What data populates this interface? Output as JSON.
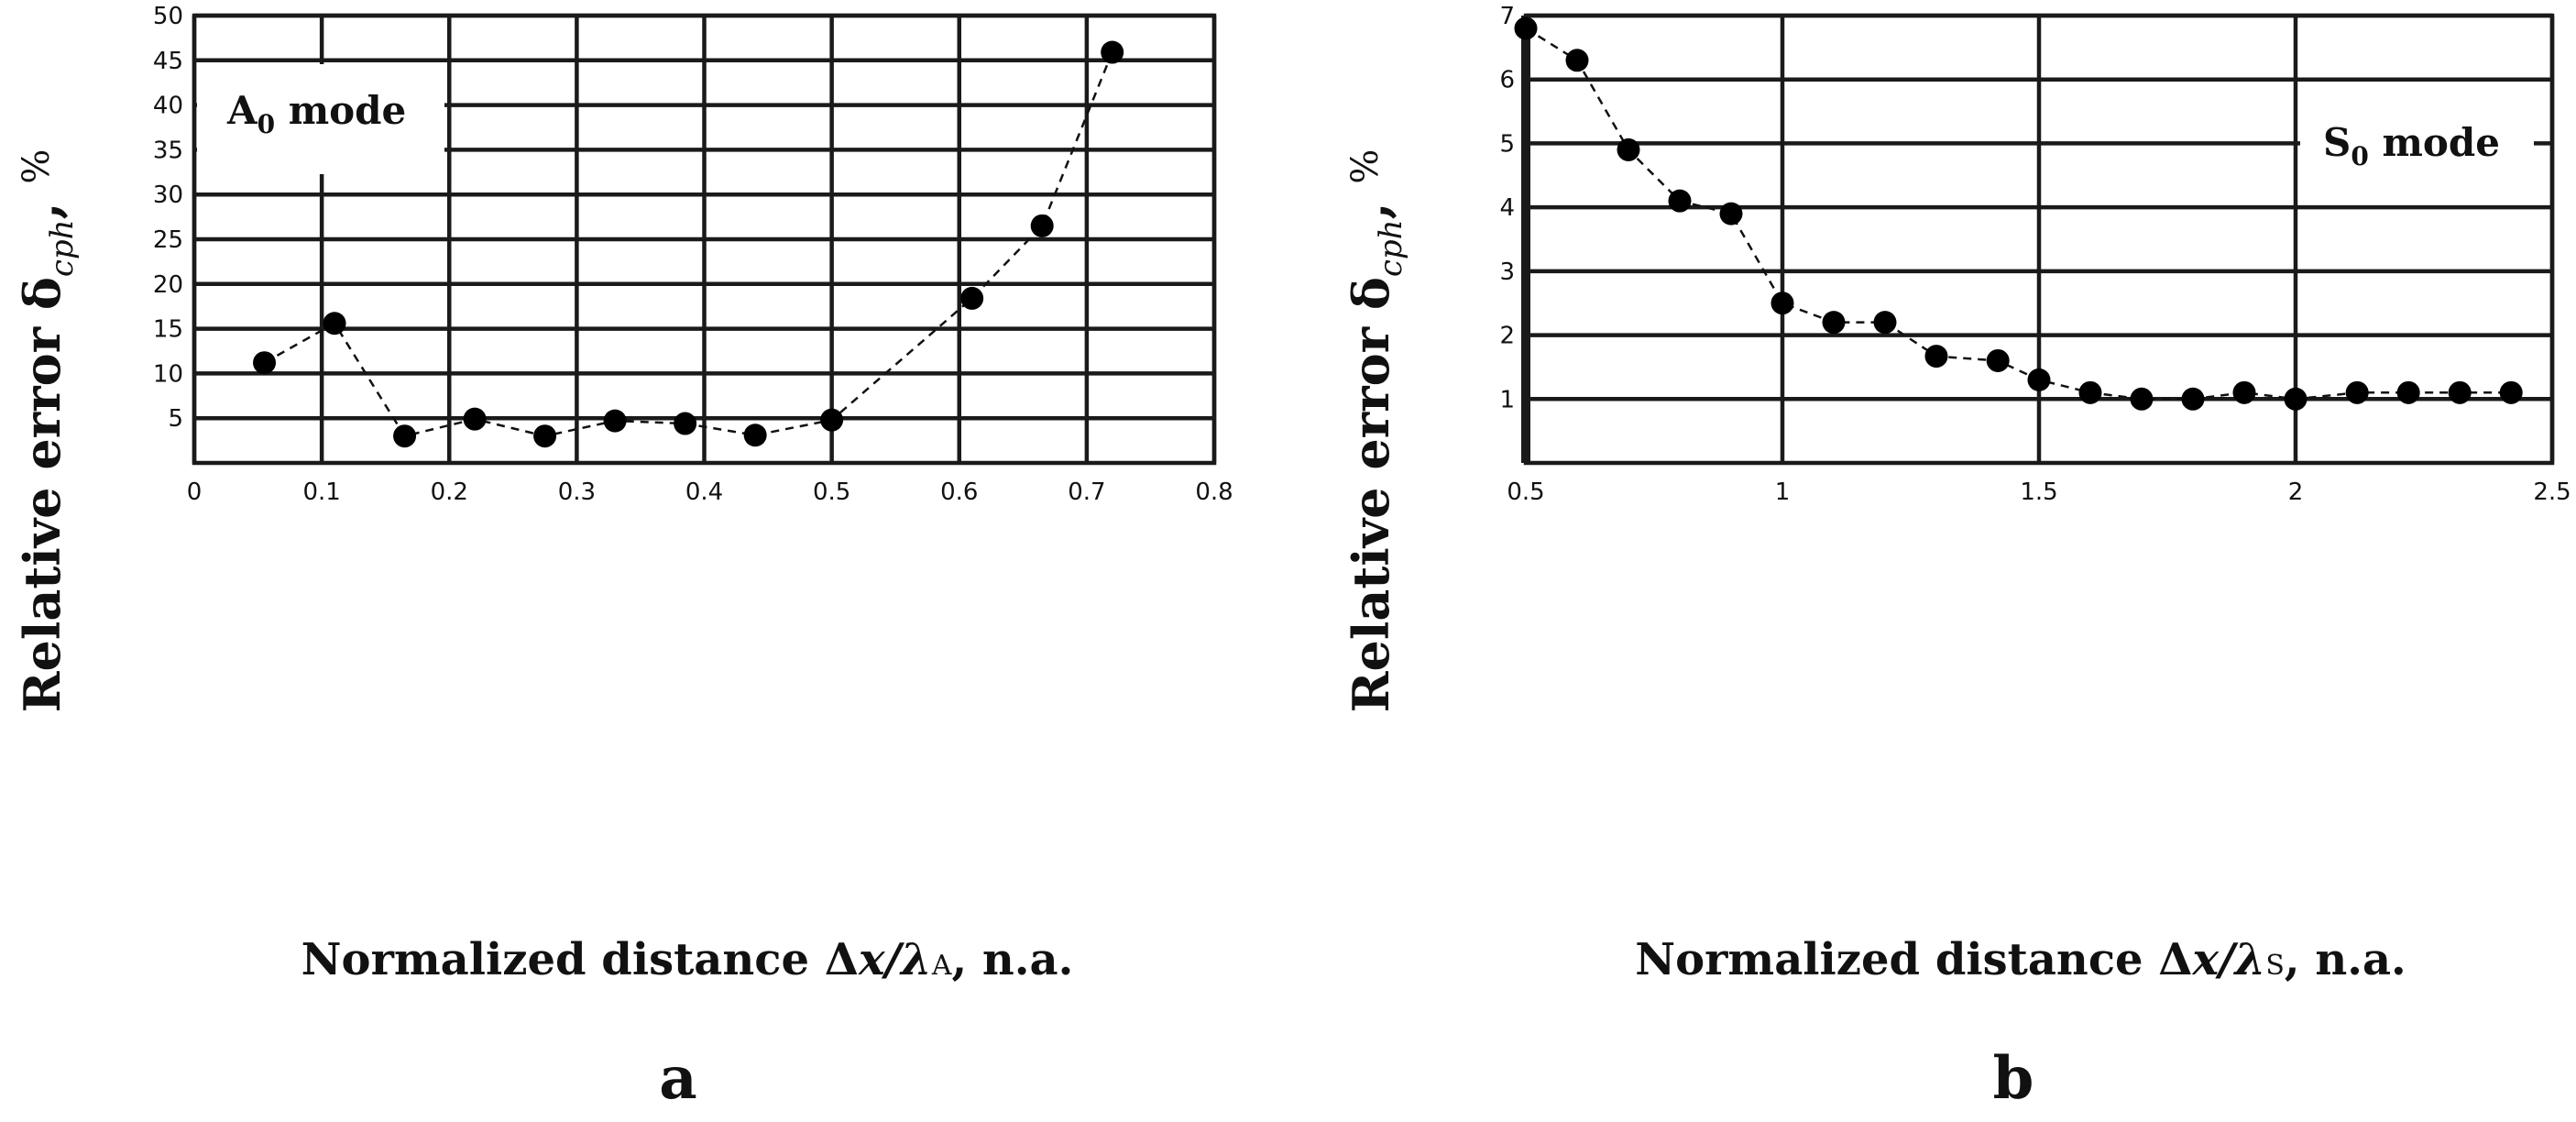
{
  "chart_data": [
    {
      "type": "scatter",
      "panel_label": "a",
      "mode_label": {
        "base": "A",
        "sub": "0",
        "rest": " mode"
      },
      "ylabel": {
        "main": "Relative error δ",
        "sub": "cph",
        "comma": ",",
        "unit": "%"
      },
      "xlabel": {
        "main": "Normalized distance Δ",
        "x": "x",
        "slash": "/λ",
        "sub": "A",
        "rest": ", n.a."
      },
      "xlim": [
        0,
        0.8
      ],
      "ylim": [
        0,
        50
      ],
      "xticks": [
        0,
        0.1,
        0.2,
        0.3,
        0.4,
        0.5,
        0.6,
        0.7,
        0.8
      ],
      "yticks": [
        5,
        10,
        15,
        20,
        25,
        30,
        35,
        40,
        45,
        50
      ],
      "xtick_labels": [
        "0",
        "0.1",
        "0.2",
        "0.3",
        "0.4",
        "0.5",
        "0.6",
        "0.7",
        "0.8"
      ],
      "ytick_labels": [
        "5",
        "10",
        "15",
        "20",
        "25",
        "30",
        "35",
        "40",
        "45",
        "50"
      ],
      "grid": true,
      "line_style": "dashed",
      "marker": "filled-circle",
      "series": [
        {
          "name": "A0 mode",
          "x": [
            0.055,
            0.11,
            0.165,
            0.22,
            0.275,
            0.33,
            0.385,
            0.44,
            0.5,
            0.61,
            0.665,
            0.72
          ],
          "y": [
            11.2,
            15.6,
            3.0,
            4.9,
            3.0,
            4.7,
            4.4,
            3.1,
            4.8,
            18.4,
            26.5,
            45.9
          ]
        }
      ]
    },
    {
      "type": "scatter",
      "panel_label": "b",
      "mode_label": {
        "base": "S",
        "sub": "0",
        "rest": " mode"
      },
      "ylabel": {
        "main": "Relative error δ",
        "sub": "cph",
        "comma": ",",
        "unit": "%"
      },
      "xlabel": {
        "main": "Normalized distance Δ",
        "x": "x",
        "slash": "/λ",
        "sub": "S",
        "rest": ", n.a."
      },
      "xlim": [
        0.5,
        2.5
      ],
      "ylim": [
        0,
        7
      ],
      "xticks": [
        0.5,
        1,
        1.5,
        2,
        2.5
      ],
      "yticks": [
        1,
        2,
        3,
        4,
        5,
        6,
        7
      ],
      "xtick_labels": [
        "0.5",
        "1",
        "1.5",
        "2",
        "2.5"
      ],
      "ytick_labels": [
        "1",
        "2",
        "3",
        "4",
        "5",
        "6",
        "7"
      ],
      "grid": true,
      "line_style": "dashed",
      "marker": "filled-circle",
      "series": [
        {
          "name": "S0 mode",
          "x": [
            0.5,
            0.6,
            0.7,
            0.8,
            0.9,
            1.0,
            1.1,
            1.2,
            1.3,
            1.42,
            1.5,
            1.6,
            1.7,
            1.8,
            1.9,
            2.0,
            2.12,
            2.22,
            2.32,
            2.42
          ],
          "y": [
            6.8,
            6.3,
            4.9,
            4.1,
            3.9,
            2.5,
            2.2,
            2.2,
            1.67,
            1.6,
            1.3,
            1.1,
            1.0,
            1.0,
            1.1,
            1.0,
            1.1,
            1.1,
            1.1,
            1.1
          ]
        }
      ]
    }
  ]
}
